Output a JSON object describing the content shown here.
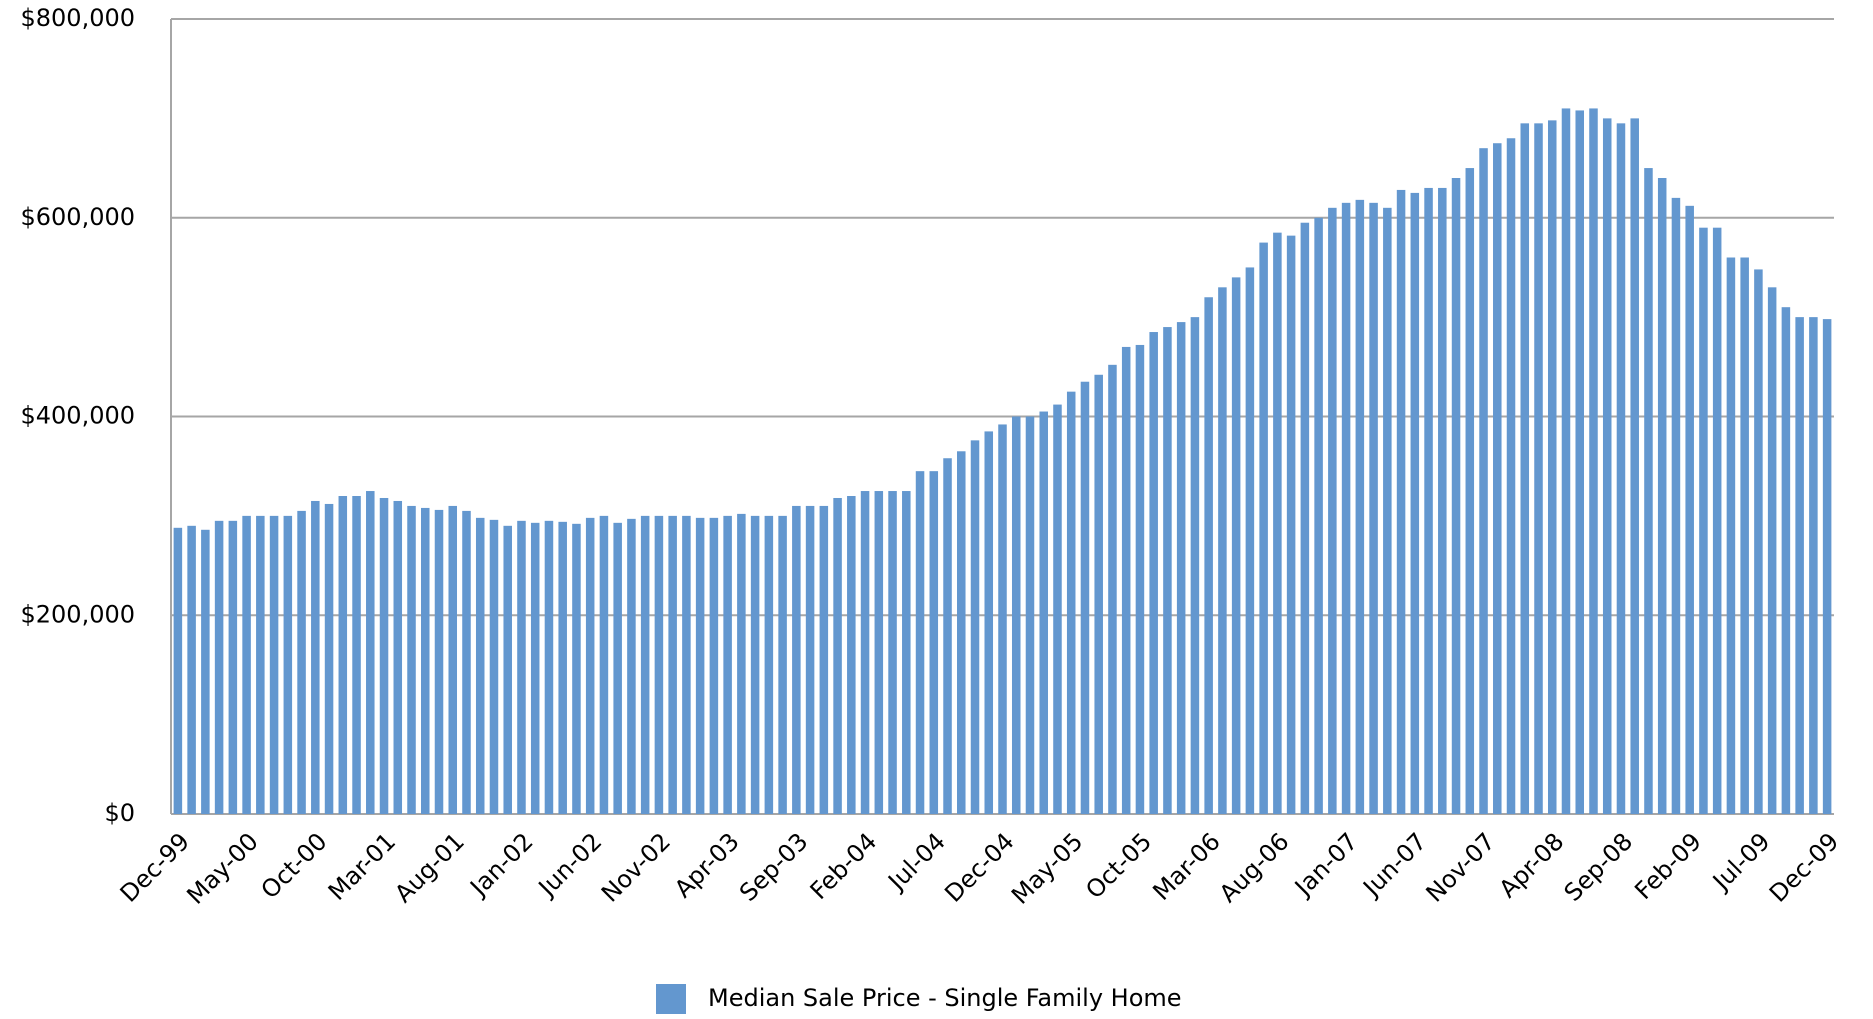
{
  "chart_data": {
    "type": "bar",
    "categories": [
      "Dec-99",
      null,
      null,
      null,
      null,
      "May-00",
      null,
      null,
      null,
      null,
      "Oct-00",
      null,
      null,
      null,
      null,
      "Mar-01",
      null,
      null,
      null,
      null,
      "Aug-01",
      null,
      null,
      null,
      null,
      "Jan-02",
      null,
      null,
      null,
      null,
      "Jun-02",
      null,
      null,
      null,
      null,
      "Nov-02",
      null,
      null,
      null,
      null,
      "Apr-03",
      null,
      null,
      null,
      null,
      "Sep-03",
      null,
      null,
      null,
      null,
      "Feb-04",
      null,
      null,
      null,
      null,
      "Jul-04",
      null,
      null,
      null,
      null,
      "Dec-04",
      null,
      null,
      null,
      null,
      "May-05",
      null,
      null,
      null,
      null,
      "Oct-05",
      null,
      null,
      null,
      null,
      "Mar-06",
      null,
      null,
      null,
      null,
      "Aug-06",
      null,
      null,
      null,
      null,
      "Jan-07",
      null,
      null,
      null,
      null,
      "Jun-07",
      null,
      null,
      null,
      null,
      "Nov-07",
      null,
      null,
      null,
      null,
      "Apr-08",
      null,
      null,
      null,
      null,
      "Sep-08",
      null,
      null,
      null,
      null,
      "Feb-09",
      null,
      null,
      null,
      null,
      "Jul-09",
      null,
      null,
      null,
      null,
      "Dec-09"
    ],
    "series": [
      {
        "name": "Median Sale Price - Single Family Home",
        "color": "#6397cf",
        "values": [
          288000,
          290000,
          286000,
          295000,
          295000,
          300000,
          300000,
          300000,
          300000,
          305000,
          315000,
          312000,
          320000,
          320000,
          325000,
          318000,
          315000,
          310000,
          308000,
          306000,
          310000,
          305000,
          298000,
          296000,
          290000,
          295000,
          293000,
          295000,
          294000,
          292000,
          298000,
          300000,
          293000,
          297000,
          300000,
          300000,
          300000,
          300000,
          298000,
          298000,
          300000,
          302000,
          300000,
          300000,
          300000,
          310000,
          310000,
          310000,
          318000,
          320000,
          325000,
          325000,
          325000,
          325000,
          345000,
          345000,
          358000,
          365000,
          376000,
          385000,
          392000,
          400000,
          400000,
          405000,
          412000,
          425000,
          435000,
          442000,
          452000,
          470000,
          472000,
          485000,
          490000,
          495000,
          500000,
          520000,
          530000,
          540000,
          550000,
          575000,
          585000,
          582000,
          595000,
          600000,
          610000,
          615000,
          618000,
          615000,
          610000,
          628000,
          625000,
          630000,
          630000,
          640000,
          650000,
          670000,
          675000,
          680000,
          695000,
          695000,
          698000,
          710000,
          708000,
          710000,
          700000,
          695000,
          700000,
          650000,
          640000,
          620000,
          612000,
          590000,
          590000,
          560000,
          560000,
          548000,
          530000,
          510000,
          500000,
          500000,
          498000
        ]
      }
    ],
    "ylim": [
      0,
      800000
    ],
    "yticks": [
      {
        "value": 0,
        "label": "$0"
      },
      {
        "value": 200000,
        "label": "$200,000"
      },
      {
        "value": 400000,
        "label": "$400,000"
      },
      {
        "value": 600000,
        "label": "$600,000"
      },
      {
        "value": 800000,
        "label": "$800,000"
      }
    ],
    "grid": true,
    "legend": "bottom"
  }
}
